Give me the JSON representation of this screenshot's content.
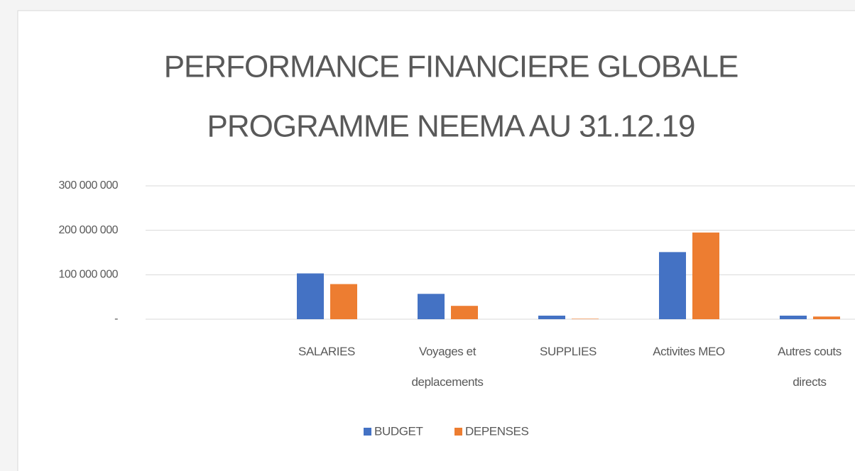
{
  "chart_data": {
    "type": "bar",
    "title": [
      "PERFORMANCE FINANCIERE GLOBALE",
      "PROGRAMME NEEMA AU 31.12.19"
    ],
    "categories": [
      null,
      "SALARIES",
      "Voyages et deplacements",
      "SUPPLIES",
      "Activites MEO",
      "Autres couts directs"
    ],
    "series": [
      {
        "name": "BUDGET",
        "color": "#4472c4",
        "values": [
          null,
          103000000,
          57000000,
          8000000,
          151000000,
          8000000
        ]
      },
      {
        "name": "DEPENSES",
        "color": "#ed7d31",
        "values": [
          null,
          79000000,
          30000000,
          1000000,
          195000000,
          6000000
        ]
      }
    ],
    "ylim": [
      0,
      300000000
    ],
    "yticks": [
      {
        "value": 0,
        "label": "-"
      },
      {
        "value": 100000000,
        "label": "100 000 000"
      },
      {
        "value": 200000000,
        "label": "200 000 000"
      },
      {
        "value": 300000000,
        "label": "300 000 000"
      }
    ],
    "grid": true,
    "legend": "bottom"
  }
}
